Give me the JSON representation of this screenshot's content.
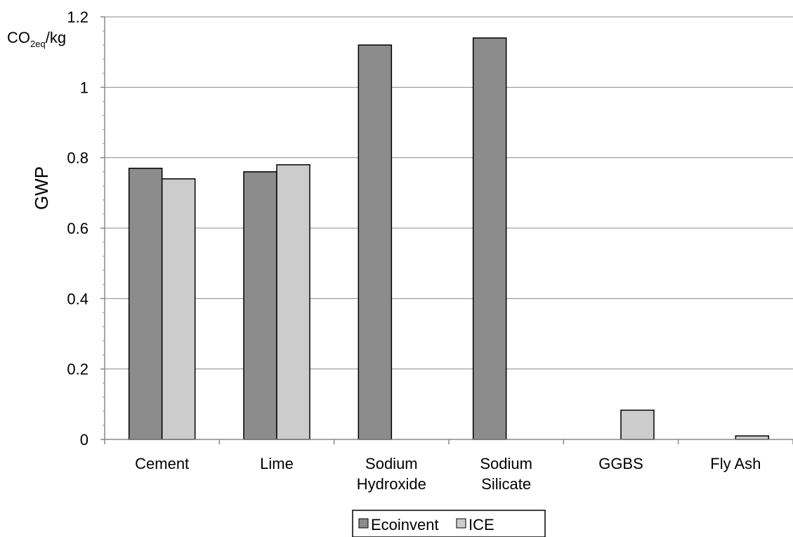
{
  "chart_data": {
    "type": "bar",
    "categories": [
      [
        "Cement"
      ],
      [
        "Lime"
      ],
      [
        "Sodium",
        "Hydroxide"
      ],
      [
        "Sodium",
        "Silicate"
      ],
      [
        "GGBS"
      ],
      [
        "Fly Ash"
      ]
    ],
    "series": [
      {
        "name": "Ecoinvent",
        "color": "#8c8c8c",
        "values": [
          0.77,
          0.76,
          1.12,
          1.14,
          null,
          null
        ]
      },
      {
        "name": "ICE",
        "color": "#cccccc",
        "values": [
          0.74,
          0.78,
          null,
          null,
          0.083,
          0.01
        ]
      }
    ],
    "ylabel": "GWP",
    "unit_label": {
      "base": "CO",
      "sub": "2eq",
      "suffix": "/kg"
    },
    "ylim": [
      0,
      1.2
    ],
    "yticks": [
      "0",
      "0.2",
      "0.4",
      "0.6",
      "0.8",
      "1",
      "1.2"
    ],
    "grid": true,
    "legend_position": "bottom"
  }
}
